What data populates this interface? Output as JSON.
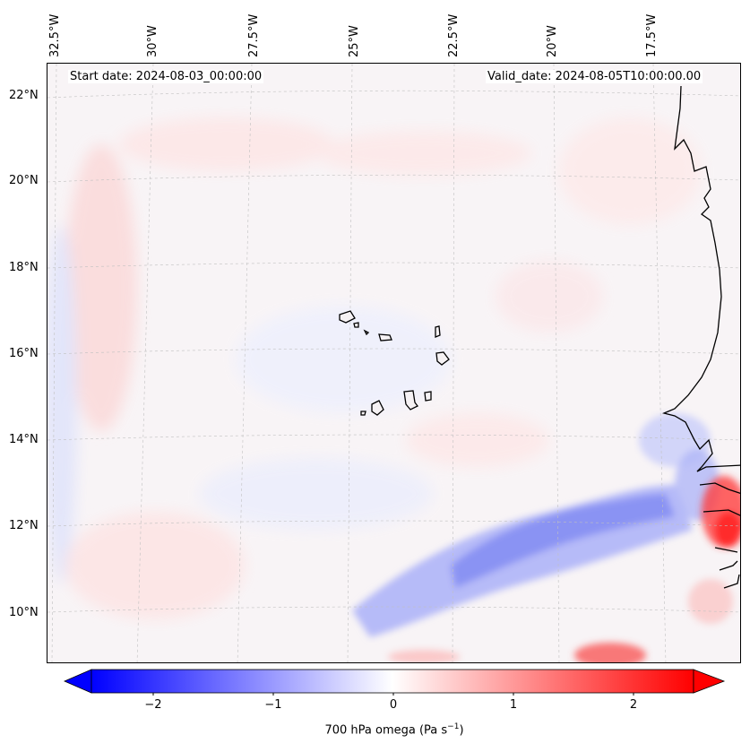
{
  "map": {
    "start_date": "Start date: 2024-08-03_00:00:00",
    "valid_date": "Valid_date: 2024-08-05T10:00:00.00",
    "lon_labels": [
      "32.5°W",
      "30°W",
      "27.5°W",
      "25°W",
      "22.5°W",
      "20°W",
      "17.5°W"
    ],
    "lat_labels": [
      "22°N",
      "20°N",
      "18°N",
      "16°N",
      "14°N",
      "12°N",
      "10°N"
    ],
    "field": "700 hPa omega",
    "colormap": "bwr",
    "colors": {
      "negative": "#0000ff",
      "neutral": "#ffffff",
      "positive": "#ff0000",
      "coastline": "#000000",
      "gridline": "#b0b0b0"
    }
  },
  "colorbar": {
    "ticks": [
      "−2",
      "−1",
      "0",
      "1",
      "2"
    ],
    "label_text": "700 hPa omega (Pa s",
    "label_exp": "−1",
    "label_close": ")",
    "range": [
      -2.5,
      2.5
    ],
    "extend": "both"
  }
}
